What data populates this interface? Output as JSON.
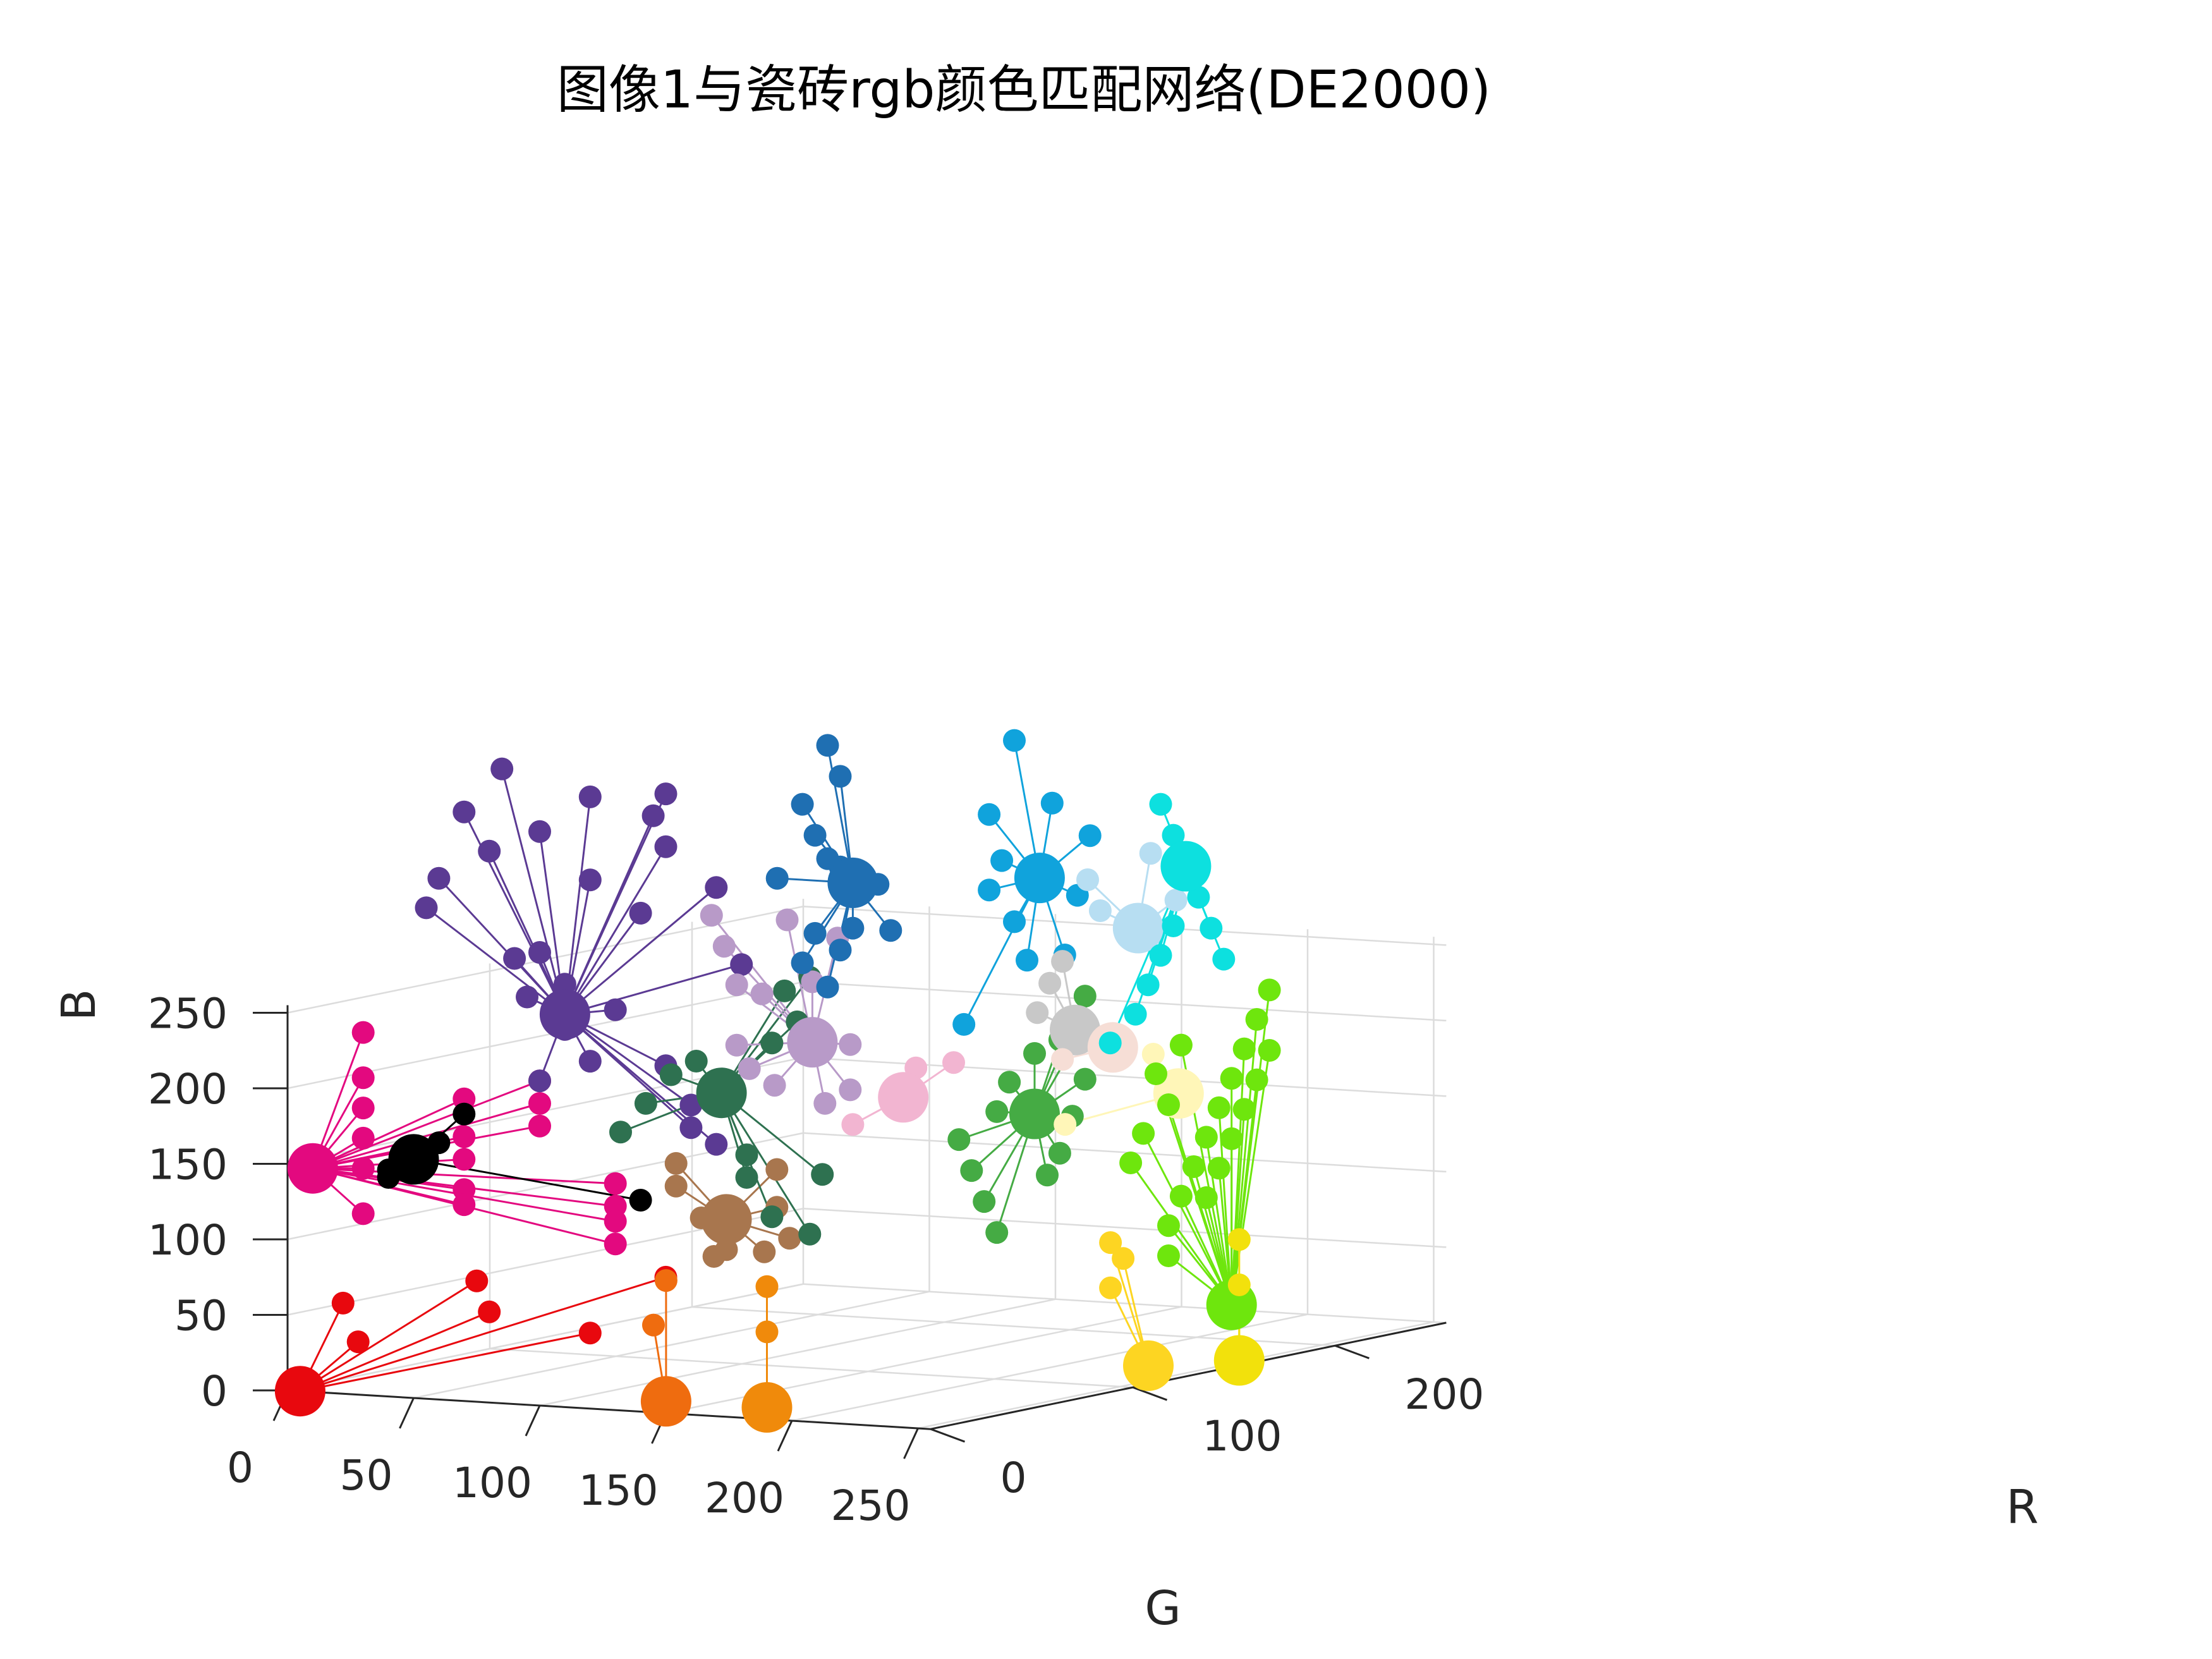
{
  "chart_data": {
    "type": "scatter",
    "title": "图像1与瓷砖rgb颜色匹配网络(DE2000)",
    "xlabel": "G",
    "ylabel": "R",
    "zlabel": "B",
    "xlim": [
      0,
      255
    ],
    "ylim": [
      0,
      255
    ],
    "zlim": [
      0,
      255
    ],
    "xticks": [
      "0",
      "50",
      "100",
      "150",
      "200",
      "250"
    ],
    "yticks": [
      "0",
      "100",
      "200"
    ],
    "zticks": [
      "0",
      "50",
      "100",
      "150",
      "200",
      "250"
    ],
    "grid": true,
    "clusters": [
      {
        "color": "#e8080e",
        "center": [
          5,
          0,
          0
        ],
        "members": [
          [
            28,
            0,
            35
          ],
          [
            22,
            0,
            60
          ],
          [
            80,
            0,
            60
          ],
          [
            75,
            0,
            80
          ],
          [
            150,
            0,
            90
          ],
          [
            120,
            0,
            50
          ]
        ]
      },
      {
        "color": "#e3097f",
        "center": [
          10,
          0,
          148
        ],
        "members": [
          [
            30,
            0,
            240
          ],
          [
            30,
            0,
            210
          ],
          [
            30,
            0,
            190
          ],
          [
            30,
            0,
            170
          ],
          [
            30,
            0,
            150
          ],
          [
            30,
            0,
            120
          ],
          [
            70,
            0,
            200
          ],
          [
            70,
            0,
            175
          ],
          [
            70,
            0,
            160
          ],
          [
            70,
            0,
            140
          ],
          [
            70,
            0,
            130
          ],
          [
            100,
            0,
            215
          ],
          [
            100,
            0,
            200
          ],
          [
            100,
            0,
            185
          ],
          [
            130,
            0,
            150
          ],
          [
            130,
            0,
            135
          ],
          [
            130,
            0,
            125
          ],
          [
            130,
            0,
            110
          ]
        ]
      },
      {
        "color": "#5b3a93",
        "center": [
          110,
          0,
          260
        ],
        "members": [
          [
            85,
            0,
            420
          ],
          [
            70,
            0,
            390
          ],
          [
            80,
            0,
            365
          ],
          [
            60,
            0,
            345
          ],
          [
            55,
            0,
            325
          ],
          [
            90,
            0,
            295
          ],
          [
            100,
            0,
            300
          ],
          [
            95,
            0,
            270
          ],
          [
            110,
            0,
            280
          ],
          [
            110,
            0,
            250
          ],
          [
            120,
            0,
            230
          ],
          [
            100,
            0,
            215
          ],
          [
            130,
            0,
            265
          ],
          [
            150,
            0,
            230
          ],
          [
            160,
            0,
            205
          ],
          [
            160,
            0,
            190
          ],
          [
            170,
            0,
            180
          ],
          [
            180,
            0,
            300
          ],
          [
            170,
            0,
            350
          ],
          [
            150,
            0,
            375
          ],
          [
            140,
            0,
            330
          ],
          [
            120,
            0,
            350
          ],
          [
            120,
            0,
            405
          ],
          [
            100,
            0,
            380
          ],
          [
            150,
            0,
            410
          ],
          [
            145,
            0,
            395
          ]
        ]
      },
      {
        "color": "#000000",
        "center": [
          50,
          0,
          158
        ],
        "members": [
          [
            70,
            0,
            190
          ],
          [
            60,
            0,
            170
          ],
          [
            40,
            0,
            150
          ],
          [
            40,
            0,
            145
          ],
          [
            140,
            0,
            140
          ]
        ]
      },
      {
        "color": "#a8764e",
        "center": [
          150,
          30,
          120
        ],
        "members": [
          [
            130,
            30,
            155
          ],
          [
            130,
            30,
            140
          ],
          [
            150,
            30,
            100
          ],
          [
            145,
            30,
            95
          ],
          [
            170,
            30,
            130
          ],
          [
            170,
            30,
            155
          ],
          [
            175,
            30,
            110
          ],
          [
            165,
            30,
            100
          ],
          [
            140,
            30,
            120
          ]
        ]
      },
      {
        "color": "#ef6c0f",
        "center": [
          110,
          50,
          -10
        ],
        "members": [
          [
            105,
            50,
            40
          ],
          [
            110,
            50,
            70
          ]
        ]
      },
      {
        "color": "#f08a0b",
        "center": [
          150,
          50,
          -10
        ],
        "members": [
          [
            150,
            50,
            70
          ],
          [
            150,
            50,
            40
          ]
        ]
      },
      {
        "color": "#2e7150",
        "center": [
          140,
          40,
          200
        ],
        "members": [
          [
            100,
            40,
            170
          ],
          [
            110,
            40,
            190
          ],
          [
            120,
            40,
            210
          ],
          [
            130,
            40,
            220
          ],
          [
            160,
            40,
            235
          ],
          [
            170,
            40,
            250
          ],
          [
            165,
            40,
            270
          ],
          [
            175,
            40,
            280
          ],
          [
            150,
            40,
            145
          ],
          [
            150,
            40,
            160
          ],
          [
            160,
            40,
            120
          ],
          [
            175,
            40,
            110
          ],
          [
            180,
            40,
            150
          ]
        ]
      },
      {
        "color": "#b89ac8",
        "center": [
          160,
          60,
          230
        ],
        "members": [
          [
            120,
            60,
            310
          ],
          [
            125,
            60,
            290
          ],
          [
            130,
            60,
            265
          ],
          [
            140,
            60,
            260
          ],
          [
            130,
            60,
            225
          ],
          [
            135,
            60,
            210
          ],
          [
            145,
            60,
            200
          ],
          [
            165,
            60,
            190
          ],
          [
            175,
            60,
            200
          ],
          [
            175,
            60,
            230
          ],
          [
            160,
            60,
            270
          ],
          [
            170,
            60,
            300
          ],
          [
            150,
            60,
            310
          ]
        ]
      },
      {
        "color": "#1f6fb2",
        "center": [
          160,
          80,
          330
        ],
        "members": [
          [
            150,
            80,
            420
          ],
          [
            155,
            80,
            400
          ],
          [
            140,
            80,
            380
          ],
          [
            145,
            80,
            360
          ],
          [
            150,
            80,
            345
          ],
          [
            155,
            80,
            340
          ],
          [
            170,
            80,
            330
          ],
          [
            175,
            80,
            300
          ],
          [
            160,
            80,
            300
          ],
          [
            155,
            80,
            285
          ],
          [
            145,
            80,
            295
          ],
          [
            140,
            80,
            275
          ],
          [
            150,
            80,
            260
          ],
          [
            130,
            80,
            330
          ]
        ]
      },
      {
        "color": "#f2b5d1",
        "center": [
          180,
          80,
          190
        ],
        "members": [
          [
            160,
            80,
            170
          ],
          [
            185,
            80,
            210
          ],
          [
            200,
            80,
            215
          ]
        ]
      },
      {
        "color": "#45ab44",
        "center": [
          200,
          120,
          170
        ],
        "members": [
          [
            170,
            120,
            150
          ],
          [
            175,
            120,
            130
          ],
          [
            180,
            120,
            110
          ],
          [
            185,
            120,
            90
          ],
          [
            185,
            120,
            170
          ],
          [
            190,
            120,
            190
          ],
          [
            200,
            120,
            210
          ],
          [
            210,
            120,
            220
          ],
          [
            220,
            120,
            250
          ],
          [
            220,
            120,
            230
          ],
          [
            220,
            120,
            195
          ],
          [
            215,
            120,
            170
          ],
          [
            210,
            120,
            145
          ],
          [
            205,
            120,
            130
          ]
        ]
      },
      {
        "color": "#10a3dc",
        "center": [
          210,
          110,
          330
        ],
        "members": [
          [
            200,
            110,
            420
          ],
          [
            215,
            110,
            380
          ],
          [
            190,
            110,
            370
          ],
          [
            195,
            110,
            340
          ],
          [
            190,
            110,
            320
          ],
          [
            200,
            110,
            300
          ],
          [
            205,
            110,
            275
          ],
          [
            220,
            110,
            280
          ],
          [
            225,
            110,
            320
          ],
          [
            230,
            110,
            360
          ],
          [
            180,
            110,
            230
          ]
        ]
      },
      {
        "color": "#c8c8c8",
        "center": [
          200,
          140,
          220
        ],
        "members": [
          [
            190,
            140,
            250
          ],
          [
            195,
            140,
            265
          ],
          [
            185,
            140,
            230
          ]
        ]
      },
      {
        "color": "#f6ded6",
        "center": [
          215,
          140,
          210
        ],
        "members": [
          [
            195,
            140,
            200
          ]
        ]
      },
      {
        "color": "#b7def2",
        "center": [
          225,
          140,
          290
        ],
        "members": [
          [
            205,
            140,
            320
          ],
          [
            210,
            140,
            300
          ],
          [
            230,
            140,
            340
          ],
          [
            240,
            140,
            310
          ]
        ]
      },
      {
        "color": "#fff6b8",
        "center": [
          225,
          160,
          175
        ],
        "members": [
          [
            180,
            160,
            150
          ],
          [
            215,
            160,
            200
          ]
        ]
      },
      {
        "color": "#0de0df",
        "center": [
          260,
          120,
          340
        ],
        "members": [
          [
            250,
            120,
            380
          ],
          [
            255,
            120,
            360
          ],
          [
            265,
            120,
            340
          ],
          [
            265,
            120,
            320
          ],
          [
            255,
            120,
            300
          ],
          [
            250,
            120,
            280
          ],
          [
            245,
            120,
            260
          ],
          [
            240,
            120,
            240
          ],
          [
            230,
            120,
            220
          ],
          [
            270,
            120,
            300
          ],
          [
            275,
            120,
            280
          ]
        ]
      },
      {
        "color": "#6ee60d",
        "center": [
          230,
          180,
          30
        ],
        "members": [
          [
            205,
            180,
            60
          ],
          [
            205,
            180,
            80
          ],
          [
            210,
            180,
            100
          ],
          [
            215,
            180,
            120
          ],
          [
            220,
            180,
            140
          ],
          [
            225,
            180,
            160
          ],
          [
            230,
            180,
            180
          ],
          [
            235,
            180,
            200
          ],
          [
            240,
            180,
            220
          ],
          [
            245,
            180,
            240
          ],
          [
            245,
            180,
            200
          ],
          [
            240,
            180,
            180
          ],
          [
            235,
            180,
            160
          ],
          [
            230,
            180,
            140
          ],
          [
            225,
            180,
            120
          ],
          [
            220,
            180,
            100
          ],
          [
            210,
            180,
            200
          ],
          [
            200,
            180,
            180
          ],
          [
            205,
            180,
            160
          ],
          [
            195,
            180,
            140
          ],
          [
            190,
            180,
            120
          ]
        ]
      },
      {
        "color": "#fdd522",
        "center": [
          205,
          170,
          -10
        ],
        "members": [
          [
            190,
            170,
            70
          ],
          [
            190,
            170,
            40
          ],
          [
            195,
            170,
            60
          ]
        ]
      },
      {
        "color": "#f2e10c",
        "center": [
          225,
          190,
          -10
        ],
        "members": [
          [
            225,
            190,
            40
          ],
          [
            225,
            190,
            70
          ]
        ]
      }
    ]
  }
}
